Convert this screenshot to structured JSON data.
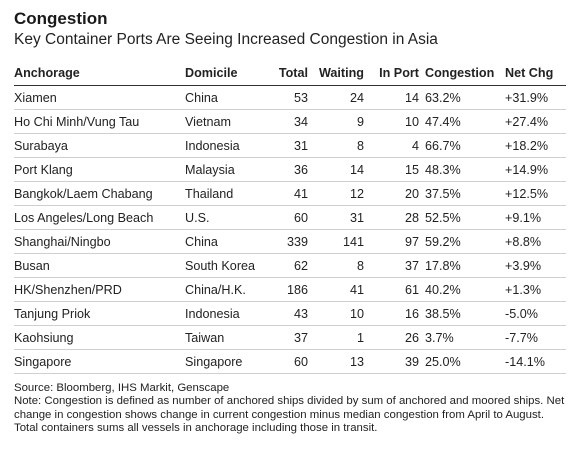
{
  "header": {
    "title": "Congestion",
    "subtitle": "Key Container Ports Are Seeing Increased Congestion in Asia"
  },
  "chart_data": {
    "type": "table",
    "columns": [
      "Anchorage",
      "Domicile",
      "Total",
      "Waiting",
      "In Port",
      "Congestion",
      "Net Chg"
    ],
    "rows": [
      [
        "Xiamen",
        "China",
        "53",
        "24",
        "14",
        "63.2%",
        "+31.9%"
      ],
      [
        "Ho Chi Minh/Vung Tau",
        "Vietnam",
        "34",
        "9",
        "10",
        "47.4%",
        "+27.4%"
      ],
      [
        "Surabaya",
        "Indonesia",
        "31",
        "8",
        "4",
        "66.7%",
        "+18.2%"
      ],
      [
        "Port Klang",
        "Malaysia",
        "36",
        "14",
        "15",
        "48.3%",
        "+14.9%"
      ],
      [
        "Bangkok/Laem Chabang",
        "Thailand",
        "41",
        "12",
        "20",
        "37.5%",
        "+12.5%"
      ],
      [
        "Los Angeles/Long Beach",
        "U.S.",
        "60",
        "31",
        "28",
        "52.5%",
        "+9.1%"
      ],
      [
        "Shanghai/Ningbo",
        "China",
        "339",
        "141",
        "97",
        "59.2%",
        "+8.8%"
      ],
      [
        "Busan",
        "South Korea",
        "62",
        "8",
        "37",
        "17.8%",
        "+3.9%"
      ],
      [
        "HK/Shenzhen/PRD",
        "China/H.K.",
        "186",
        "41",
        "61",
        "40.2%",
        "+1.3%"
      ],
      [
        "Tanjung Priok",
        "Indonesia",
        "43",
        "10",
        "16",
        "38.5%",
        "-5.0%"
      ],
      [
        "Kaohsiung",
        "Taiwan",
        "37",
        "1",
        "26",
        "3.7%",
        "-7.7%"
      ],
      [
        "Singapore",
        "Singapore",
        "60",
        "13",
        "39",
        "25.0%",
        "-14.1%"
      ]
    ]
  },
  "footer": {
    "source": "Source: Bloomberg, IHS Markit, Genscape",
    "note": "Note: Congestion is defined as number of anchored ships divided by sum of anchored and moored ships. Net change in congestion shows change in current congestion minus median congestion from April to August. Total containers sums all vessels in anchorage including those in transit."
  }
}
